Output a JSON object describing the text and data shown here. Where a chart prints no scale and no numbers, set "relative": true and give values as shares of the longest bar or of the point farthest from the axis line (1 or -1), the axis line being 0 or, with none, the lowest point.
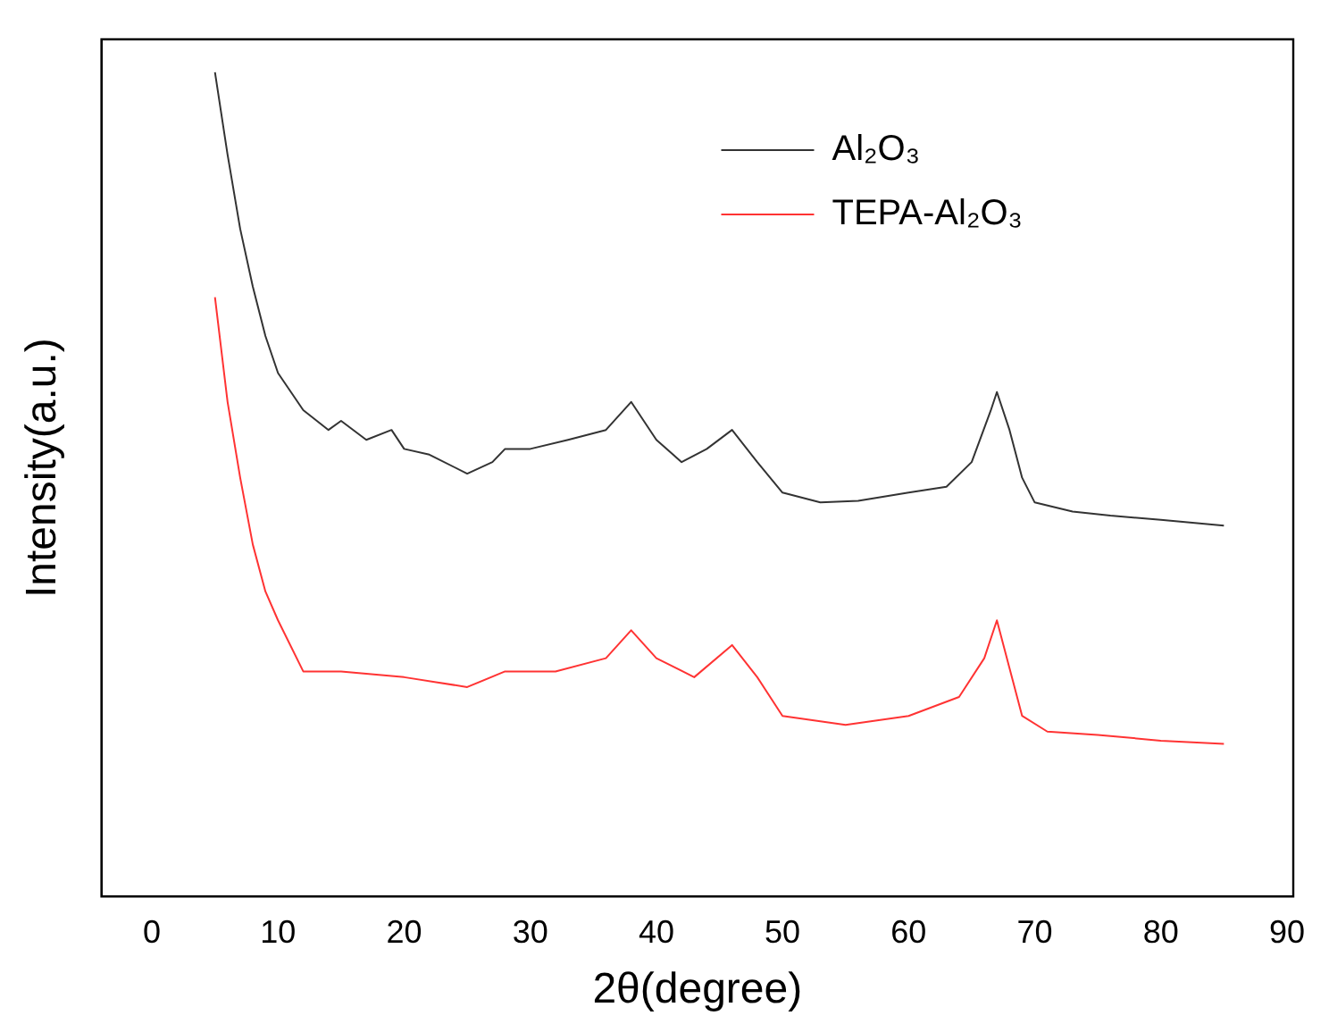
{
  "chart_data": {
    "type": "line",
    "relative": true,
    "xlabel": "2θ(degree)",
    "ylabel": "Intensity(a.u.)",
    "xlim": [
      -4,
      90.5
    ],
    "xticks": [
      0,
      10,
      20,
      30,
      40,
      50,
      60,
      70,
      80,
      90
    ],
    "grid": false,
    "legend": "top right",
    "marker": "none",
    "line_style": "solid",
    "tick_labels": "x",
    "series": [
      {
        "name": "Al₂O₃",
        "color": "#333333",
        "x": [
          5,
          6,
          7,
          8,
          9,
          10,
          12,
          14,
          15,
          17,
          19,
          20,
          22,
          25,
          27,
          28,
          30,
          33,
          36,
          38,
          40,
          42,
          44,
          46,
          48,
          50,
          53,
          56,
          60,
          63,
          65,
          66.5,
          67,
          68,
          69,
          70,
          73,
          76,
          80,
          85
        ],
        "values": [
          1.0,
          0.9,
          0.81,
          0.74,
          0.68,
          0.635,
          0.59,
          0.566,
          0.577,
          0.554,
          0.566,
          0.543,
          0.536,
          0.513,
          0.527,
          0.543,
          0.543,
          0.554,
          0.566,
          0.6,
          0.554,
          0.527,
          0.543,
          0.566,
          0.527,
          0.49,
          0.478,
          0.48,
          0.49,
          0.497,
          0.527,
          0.589,
          0.612,
          0.566,
          0.508,
          0.478,
          0.467,
          0.462,
          0.457,
          0.45
        ]
      },
      {
        "name": "TEPA-Al₂O₃",
        "color": "#ff3333",
        "x": [
          5,
          6,
          7,
          8,
          9,
          10,
          12,
          15,
          20,
          25,
          28,
          32,
          36,
          38,
          40,
          43,
          46,
          48,
          50,
          55,
          60,
          64,
          66,
          67,
          68,
          69,
          71,
          75,
          80,
          85
        ],
        "values": [
          0.727,
          0.6,
          0.508,
          0.427,
          0.37,
          0.335,
          0.273,
          0.273,
          0.266,
          0.254,
          0.273,
          0.273,
          0.289,
          0.323,
          0.289,
          0.266,
          0.305,
          0.266,
          0.219,
          0.208,
          0.219,
          0.242,
          0.289,
          0.335,
          0.277,
          0.219,
          0.2,
          0.196,
          0.189,
          0.185
        ]
      }
    ]
  }
}
